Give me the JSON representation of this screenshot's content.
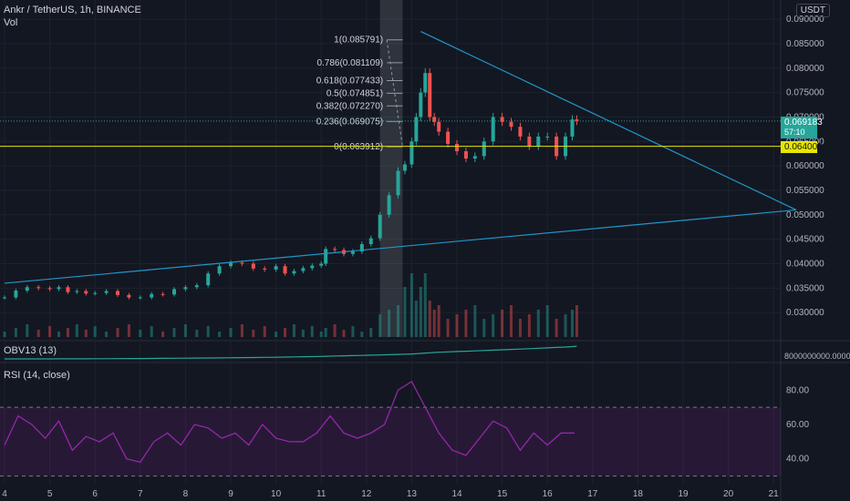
{
  "header": {
    "title": "Ankr / TetherUS, 1h, BINANCE",
    "vol_label": "Vol",
    "obv_label": "OBV13 (13)",
    "rsi_label": "RSI (14, close)",
    "currency": "USDT"
  },
  "price_tags": {
    "last": "0.069183",
    "last_sub": "57:10",
    "level": "0.064009"
  },
  "colors": {
    "background": "#131722",
    "up": "#26a69a",
    "down": "#ef5350",
    "trendline": "#2196c9",
    "support": "#e6e600",
    "rsi": "#9c27b0",
    "obv": "#26a69a",
    "text": "#b2b5be",
    "grid": "#1e222d"
  },
  "chart_data": [
    {
      "type": "candlestick",
      "title": "Ankr / TetherUS, 1h, BINANCE",
      "ylim": [
        0.025,
        0.093
      ],
      "y_ticks": [
        "0.090000",
        "0.085000",
        "0.080000",
        "0.075000",
        "0.070000",
        "0.065000",
        "0.060000",
        "0.055000",
        "0.050000",
        "0.045000",
        "0.040000",
        "0.035000",
        "0.030000"
      ],
      "x_ticks": [
        "4",
        "5",
        "6",
        "7",
        "8",
        "9",
        "10",
        "11",
        "12",
        "13",
        "14",
        "15",
        "16",
        "17",
        "18",
        "19",
        "20",
        "21"
      ],
      "series": [
        {
          "values": [
            [
              4.0,
              0.0331
            ],
            [
              4.25,
              0.0345
            ],
            [
              4.5,
              0.0352
            ],
            [
              4.75,
              0.035
            ],
            [
              5.0,
              0.0348
            ],
            [
              5.2,
              0.0352
            ],
            [
              5.4,
              0.0342
            ],
            [
              5.6,
              0.0344
            ],
            [
              5.8,
              0.0339
            ],
            [
              6.0,
              0.034
            ],
            [
              6.25,
              0.0344
            ],
            [
              6.5,
              0.0336
            ],
            [
              6.75,
              0.0331
            ],
            [
              7.0,
              0.0331
            ],
            [
              7.25,
              0.0338
            ],
            [
              7.5,
              0.0337
            ],
            [
              7.75,
              0.0348
            ],
            [
              8.0,
              0.0352
            ],
            [
              8.25,
              0.0356
            ],
            [
              8.5,
              0.038
            ],
            [
              8.75,
              0.0395
            ],
            [
              9.0,
              0.0402
            ],
            [
              9.25,
              0.04
            ],
            [
              9.5,
              0.039
            ],
            [
              9.75,
              0.0388
            ],
            [
              10.0,
              0.0395
            ],
            [
              10.2,
              0.038
            ],
            [
              10.4,
              0.0385
            ],
            [
              10.6,
              0.0391
            ],
            [
              10.8,
              0.0396
            ],
            [
              11.0,
              0.04
            ],
            [
              11.1,
              0.043
            ],
            [
              11.3,
              0.0428
            ],
            [
              11.5,
              0.042
            ],
            [
              11.7,
              0.0425
            ],
            [
              11.9,
              0.044
            ],
            [
              12.1,
              0.0452
            ],
            [
              12.3,
              0.05
            ],
            [
              12.5,
              0.054
            ],
            [
              12.7,
              0.059
            ],
            [
              12.85,
              0.0603
            ],
            [
              13.0,
              0.065
            ],
            [
              13.1,
              0.07
            ],
            [
              13.2,
              0.075
            ],
            [
              13.3,
              0.079
            ],
            [
              13.4,
              0.07
            ],
            [
              13.5,
              0.069
            ],
            [
              13.6,
              0.067
            ],
            [
              13.8,
              0.0645
            ],
            [
              14.0,
              0.063
            ],
            [
              14.2,
              0.0615
            ],
            [
              14.4,
              0.062
            ],
            [
              14.6,
              0.065
            ],
            [
              14.8,
              0.07
            ],
            [
              15.0,
              0.069
            ],
            [
              15.2,
              0.068
            ],
            [
              15.4,
              0.066
            ],
            [
              15.6,
              0.064
            ],
            [
              15.8,
              0.066
            ],
            [
              16.0,
              0.066
            ],
            [
              16.2,
              0.062
            ],
            [
              16.4,
              0.066
            ],
            [
              16.55,
              0.0695
            ],
            [
              16.65,
              0.0692
            ]
          ]
        }
      ],
      "fibonacci": [
        {
          "label": "1(0.085791)",
          "price": 0.085791
        },
        {
          "label": "0.786(0.081109)",
          "price": 0.081109
        },
        {
          "label": "0.618(0.077433)",
          "price": 0.077433
        },
        {
          "label": "0.5(0.074851)",
          "price": 0.074851
        },
        {
          "label": "0.382(0.072270)",
          "price": 0.07227
        },
        {
          "label": "0.236(0.069075)",
          "price": 0.069075
        },
        {
          "label": "0(0.063912)",
          "price": 0.063912
        }
      ],
      "support_level": 0.064009,
      "trendlines": [
        {
          "from": [
            4.0,
            0.036
          ],
          "to": [
            21.5,
            0.051
          ]
        },
        {
          "from": [
            13.2,
            0.0875
          ],
          "to": [
            21.5,
            0.051
          ]
        }
      ]
    },
    {
      "type": "line",
      "title": "OBV13 (13)",
      "y_ticks": [
        "8000000000.000000"
      ]
    },
    {
      "type": "line",
      "title": "RSI (14, close)",
      "ylim": [
        25,
        95
      ],
      "y_ticks": [
        "80.00",
        "60.00",
        "40.00"
      ],
      "bands": [
        70,
        30
      ],
      "x": [
        4.0,
        4.3,
        4.6,
        4.9,
        5.2,
        5.5,
        5.8,
        6.1,
        6.4,
        6.7,
        7.0,
        7.3,
        7.6,
        7.9,
        8.2,
        8.5,
        8.8,
        9.1,
        9.4,
        9.7,
        10.0,
        10.3,
        10.6,
        10.9,
        11.2,
        11.5,
        11.8,
        12.1,
        12.4,
        12.7,
        13.0,
        13.3,
        13.6,
        13.9,
        14.2,
        14.5,
        14.8,
        15.1,
        15.4,
        15.7,
        16.0,
        16.3,
        16.6
      ],
      "values": [
        48,
        65,
        60,
        52,
        62,
        45,
        53,
        50,
        55,
        40,
        38,
        50,
        55,
        48,
        60,
        58,
        52,
        55,
        48,
        60,
        52,
        50,
        50,
        55,
        65,
        55,
        52,
        55,
        60,
        80,
        85,
        70,
        55,
        45,
        42,
        52,
        62,
        58,
        45,
        55,
        48,
        55,
        55
      ]
    }
  ]
}
